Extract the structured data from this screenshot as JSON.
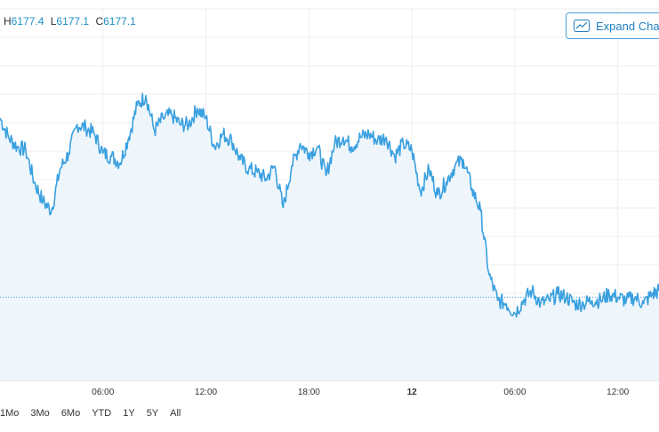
{
  "ohlc": {
    "h_label": "H",
    "h_value": "6177.4",
    "l_label": "L",
    "l_value": "6177.1",
    "c_label": "C",
    "c_value": "6177.1"
  },
  "expand_button": {
    "label": "Expand Chart",
    "icon": "chart-line-icon"
  },
  "ranges": [
    "1Mo",
    "3Mo",
    "6Mo",
    "YTD",
    "1Y",
    "5Y",
    "All"
  ],
  "colors": {
    "line": "#3aa0e0",
    "fill": "#eef6fc",
    "reference": "#3aa0e0"
  },
  "chart_data": {
    "type": "line",
    "x_ticks": [
      {
        "label": "06:00",
        "t": 6,
        "bold": false
      },
      {
        "label": "12:00",
        "t": 12,
        "bold": false
      },
      {
        "label": "18:00",
        "t": 18,
        "bold": false
      },
      {
        "label": "12",
        "t": 24,
        "bold": true
      },
      {
        "label": "06:00",
        "t": 30,
        "bold": false
      },
      {
        "label": "12:00",
        "t": 36,
        "bold": false
      }
    ],
    "x_range": [
      0,
      38.4
    ],
    "y_range": [
      0,
      100
    ],
    "reference_value": 21,
    "grid": true,
    "series": [
      {
        "x": [
          0,
          0.5,
          1,
          1.5,
          2,
          2.5,
          3,
          3.5,
          4,
          4.5,
          5,
          5.5,
          6,
          6.5,
          7,
          7.5,
          8,
          8.5,
          9,
          9.5,
          10,
          10.5,
          11,
          11.5,
          12,
          12.5,
          13,
          13.5,
          14,
          14.5,
          15,
          15.5,
          16,
          16.5,
          17,
          17.5,
          18,
          18.5,
          19,
          19.5,
          20,
          20.5,
          21,
          21.5,
          22,
          22.5,
          23,
          23.5,
          24,
          24.5,
          25,
          25.5,
          26,
          26.5,
          27,
          27.5,
          28,
          28.5,
          29,
          29.5,
          30,
          30.5,
          31,
          31.5,
          32,
          32.5,
          33,
          33.5,
          34,
          34.5,
          35,
          35.5,
          36,
          36.5,
          37,
          37.5,
          38,
          38.4
        ],
        "y": [
          77,
          71,
          68,
          67,
          57,
          51,
          48,
          61,
          66,
          75,
          74,
          72,
          66,
          65,
          63,
          71,
          81,
          84,
          73,
          77,
          78,
          75,
          75,
          80,
          77,
          68,
          72,
          70,
          64,
          61,
          60,
          58,
          62,
          49,
          62,
          69,
          66,
          68,
          59,
          69,
          71,
          68,
          71,
          72,
          70,
          71,
          65,
          69,
          67,
          54,
          61,
          53,
          57,
          62,
          64,
          55,
          48,
          28,
          20,
          19,
          16,
          20,
          23,
          19,
          20,
          22,
          21,
          19,
          19,
          20,
          20,
          22,
          21,
          20,
          21,
          19,
          22,
          23
        ]
      }
    ]
  }
}
